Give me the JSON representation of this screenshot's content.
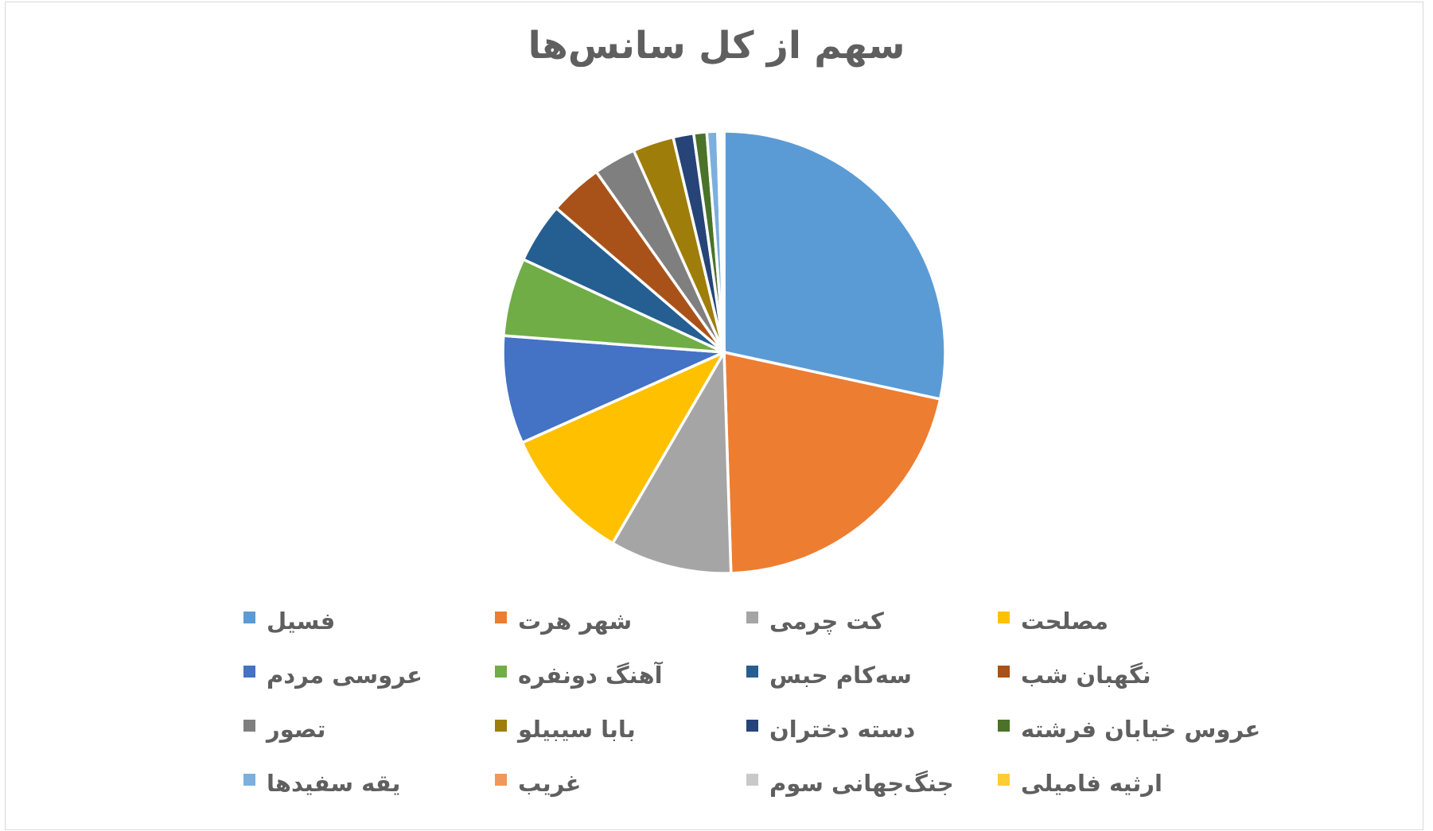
{
  "chart_data": {
    "type": "pie",
    "title": "سهم از کل سانس‌ها",
    "legend_position": "bottom",
    "legend_columns": 4,
    "direction": "clockwise",
    "start_angle_deg": 0,
    "units": "percent_share",
    "text_color": "#5F5F5F",
    "frame_border_color": "#D9D9D9",
    "slice_separator_color": "#FFFFFF",
    "slices": [
      {
        "label": "فسیل",
        "value": 28.4,
        "color": "#5B9BD5"
      },
      {
        "label": "شهر هرت",
        "value": 21.1,
        "color": "#ED7D31"
      },
      {
        "label": "کت چرمی",
        "value": 8.9,
        "color": "#A5A5A5"
      },
      {
        "label": "مصلحت",
        "value": 9.9,
        "color": "#FFC000"
      },
      {
        "label": "عروسی مردم",
        "value": 7.9,
        "color": "#4472C4"
      },
      {
        "label": "آهنگ دونفره",
        "value": 5.7,
        "color": "#70AD47"
      },
      {
        "label": "سه‌کام حبس",
        "value": 4.4,
        "color": "#255E91"
      },
      {
        "label": "نگهبان شب",
        "value": 3.9,
        "color": "#A8521A"
      },
      {
        "label": "تصور",
        "value": 3.1,
        "color": "#7F7F7F"
      },
      {
        "label": "بابا سیبیلو",
        "value": 3.0,
        "color": "#9E7D0A"
      },
      {
        "label": "دسته دختران",
        "value": 1.5,
        "color": "#264478"
      },
      {
        "label": "عروس خیابان فرشته",
        "value": 0.95,
        "color": "#4A7229"
      },
      {
        "label": "یقه سفیدها",
        "value": 0.78,
        "color": "#7CAFDD"
      },
      {
        "label": "غریب",
        "value": 0.2,
        "color": "#F1975A"
      },
      {
        "label": "جنگ‌جهانی سوم",
        "value": 0.17,
        "color": "#C9C9C9"
      },
      {
        "label": "ارثیه فامیلی",
        "value": 0.1,
        "color": "#FFCD33"
      }
    ]
  }
}
